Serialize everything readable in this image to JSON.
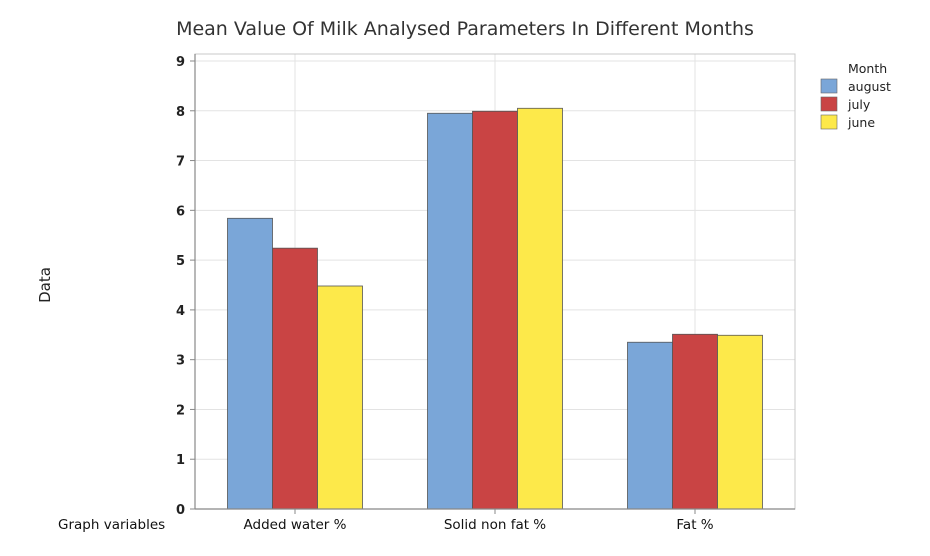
{
  "chart_data": {
    "type": "bar",
    "title": "Mean Value Of Milk Analysed Parameters In Different Months",
    "xlabel": "Graph variables",
    "ylabel": "Data",
    "ylim": [
      0,
      9
    ],
    "yticks": [
      0,
      1,
      2,
      3,
      4,
      5,
      6,
      7,
      8,
      9
    ],
    "grid": true,
    "categories": [
      "Added water %",
      "Solid non fat %",
      "Fat %"
    ],
    "legend": {
      "title": "Month",
      "placement": "top-right"
    },
    "series": [
      {
        "name": "august",
        "color": "#7aa6d8",
        "values": [
          5.84,
          7.95,
          3.35
        ]
      },
      {
        "name": "july",
        "color": "#c94444",
        "values": [
          5.24,
          7.99,
          3.51
        ]
      },
      {
        "name": "june",
        "color": "#fde94a",
        "values": [
          4.48,
          8.05,
          3.49
        ]
      }
    ]
  }
}
